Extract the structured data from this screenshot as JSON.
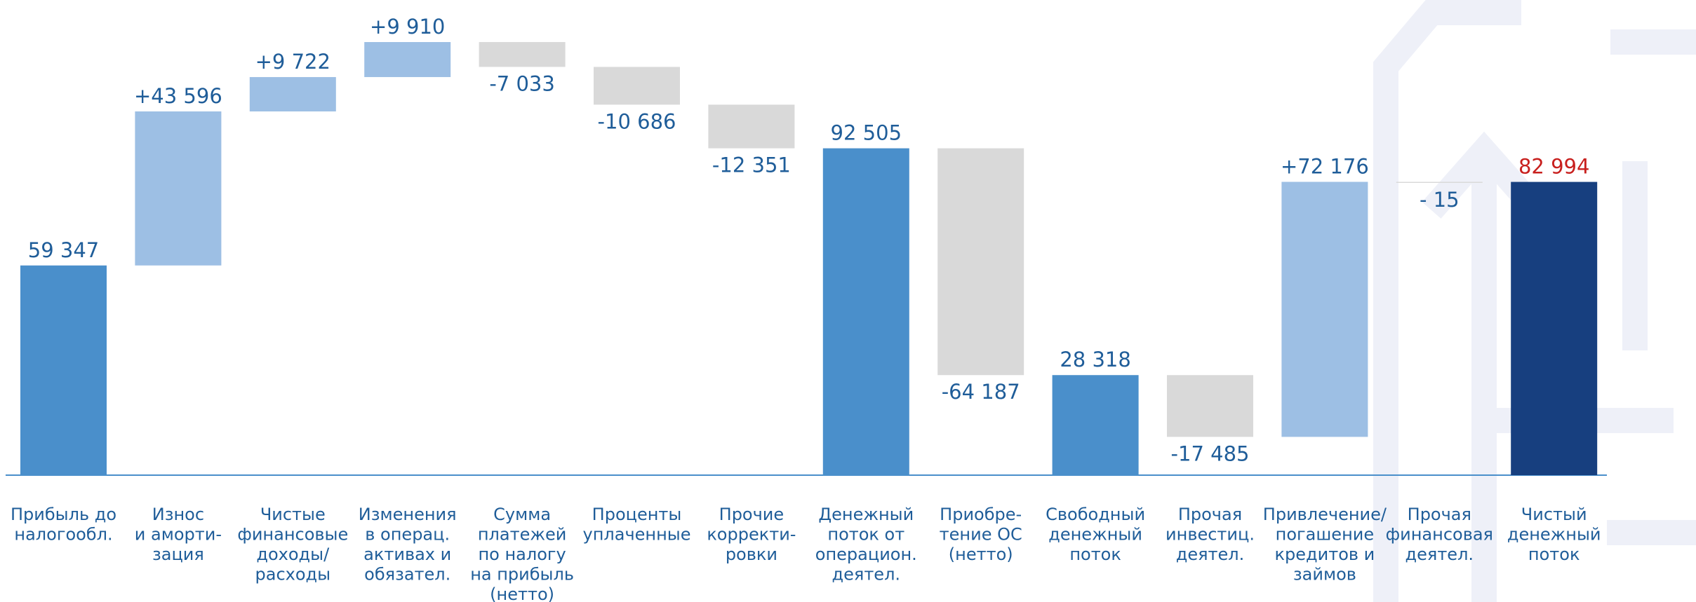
{
  "chart_data": {
    "type": "waterfall",
    "categories": [
      "Прибыль до\nналогообл.",
      "Износ\nи аморти-\nзация",
      "Чистые\nфинансовые\nдоходы/\nрасходы",
      "Изменения\nв операц.\nактивах и\nобязател.",
      "Сумма\nплатежей\nпо налогу\nна прибыль\n(нетто)",
      "Проценты\nуплаченные",
      "Прочие\nкорректи-\nровки",
      "Денежный\nпоток от\nоперацион.\nдеятел.",
      "Приобре-\nтение ОС\n(нетто)",
      "Свободный\nденежный\nпоток",
      "Прочая\nинвестиц.\nдеятел.",
      "Привлечение/\nпогашение\nкредитов и\nзаймов",
      "Прочая\nфинансовая\nдеятел.",
      "Чистый\nденежный\nпоток"
    ],
    "values": [
      59347,
      43596,
      9722,
      9910,
      -7033,
      -10686,
      -12351,
      92505,
      -64187,
      28318,
      -17485,
      72176,
      -15,
      82994
    ],
    "value_labels": [
      "59 347",
      "+43 596",
      "+9 722",
      "+9 910",
      "-7 033",
      "-10 686",
      "-12 351",
      "92 505",
      "-64 187",
      "28 318",
      "-17 485",
      "+72 176",
      "- 15",
      "82 994"
    ],
    "colors": [
      "#4a8fcb",
      "#9dbfe4",
      "#9dbfe4",
      "#9dbfe4",
      "#d9d9d9",
      "#d9d9d9",
      "#d9d9d9",
      "#4a8fcb",
      "#d9d9d9",
      "#4a8fcb",
      "#d9d9d9",
      "#9dbfe4",
      "#d9d9d9",
      "#173f7f"
    ],
    "label_colors": [
      "#1f5d99",
      "#1f5d99",
      "#1f5d99",
      "#1f5d99",
      "#1f5d99",
      "#1f5d99",
      "#1f5d99",
      "#1f5d99",
      "#1f5d99",
      "#1f5d99",
      "#1f5d99",
      "#1f5d99",
      "#1f5d99",
      "#c8201e"
    ]
  }
}
